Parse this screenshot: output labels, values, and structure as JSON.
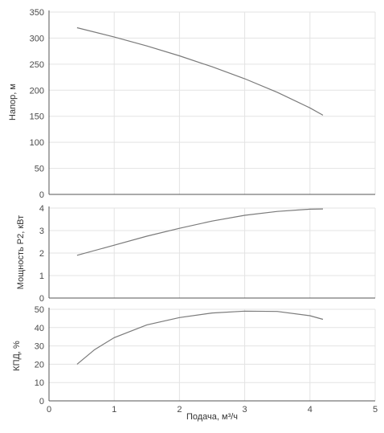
{
  "chart_data": [
    {
      "type": "line",
      "ylabel": "Напор, м",
      "ylim": [
        0,
        350
      ],
      "yticks": [
        0,
        50,
        100,
        150,
        200,
        250,
        300,
        350
      ],
      "xlim": [
        0,
        5
      ],
      "grid": true,
      "series": [
        {
          "x": [
            0.43,
            1,
            1.5,
            2,
            2.5,
            3,
            3.5,
            4,
            4.2
          ],
          "values": [
            320,
            302,
            285,
            266,
            245,
            222,
            196,
            166,
            152
          ]
        }
      ]
    },
    {
      "type": "line",
      "ylabel": "Мощность Р2, кВт",
      "ylim": [
        0,
        4
      ],
      "yticks": [
        0,
        1,
        2,
        3,
        4
      ],
      "xlim": [
        0,
        5
      ],
      "grid": true,
      "series": [
        {
          "x": [
            0.43,
            1,
            1.5,
            2,
            2.5,
            3,
            3.5,
            4,
            4.2
          ],
          "values": [
            1.9,
            2.35,
            2.75,
            3.1,
            3.42,
            3.68,
            3.85,
            3.95,
            3.96
          ]
        }
      ]
    },
    {
      "type": "line",
      "ylabel": "КПД, %",
      "xlabel": "Подача, м³/ч",
      "ylim": [
        0,
        50
      ],
      "yticks": [
        0,
        10,
        20,
        30,
        40,
        50
      ],
      "xlim": [
        0,
        5
      ],
      "xticks": [
        0,
        1,
        2,
        3,
        4,
        5
      ],
      "grid": true,
      "series": [
        {
          "x": [
            0.43,
            0.7,
            1,
            1.5,
            2,
            2.5,
            3,
            3.5,
            4,
            4.2
          ],
          "values": [
            20,
            28,
            34.5,
            41.5,
            45.5,
            48,
            49,
            48.8,
            46.5,
            44.5
          ]
        }
      ]
    }
  ],
  "colors": {
    "line": "#7a7a7a",
    "grid": "#e3e3e3",
    "axis": "#555555"
  }
}
